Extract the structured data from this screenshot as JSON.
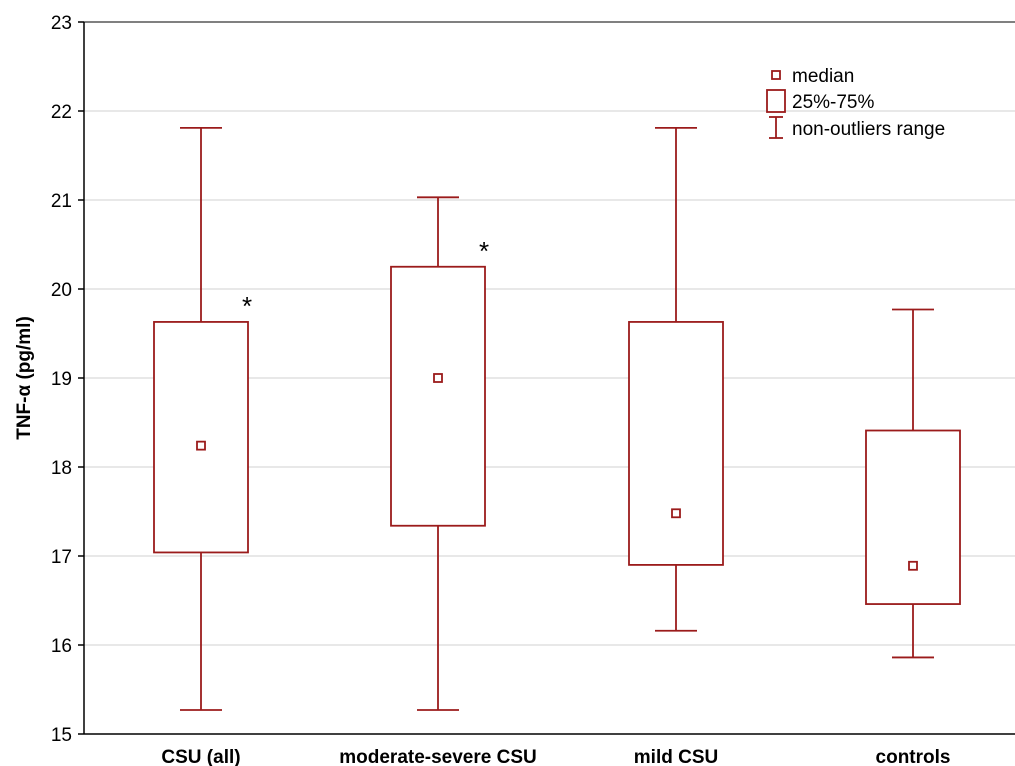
{
  "chart_data": {
    "type": "boxplot",
    "ylabel": "TNF-α (pg/ml)",
    "xlabel": "",
    "ylim": [
      15,
      23
    ],
    "yticks": [
      15,
      16,
      17,
      18,
      19,
      20,
      21,
      22,
      23
    ],
    "grid": "horizontal",
    "legend_position": "top-right",
    "color": "#9b1b1b",
    "categories": [
      "CSU (all)",
      "moderate-severe CSU",
      "mild CSU",
      "controls"
    ],
    "boxes": [
      {
        "category": "CSU (all)",
        "min": 15.27,
        "q1": 17.04,
        "median": 18.24,
        "q3": 19.63,
        "max": 21.81,
        "annotation": "*"
      },
      {
        "category": "moderate-severe CSU",
        "min": 15.27,
        "q1": 17.34,
        "median": 19.0,
        "q3": 20.25,
        "max": 21.03,
        "annotation": "*"
      },
      {
        "category": "mild CSU",
        "min": 16.16,
        "q1": 16.9,
        "median": 17.48,
        "q3": 19.63,
        "max": 21.81,
        "annotation": ""
      },
      {
        "category": "controls",
        "min": 15.86,
        "q1": 16.46,
        "median": 16.89,
        "q3": 18.41,
        "max": 19.77,
        "annotation": ""
      }
    ],
    "legend": [
      {
        "symbol": "median-square",
        "label": "median"
      },
      {
        "symbol": "box",
        "label": "25%-75%"
      },
      {
        "symbol": "whisker",
        "label": "non-outliers range"
      }
    ]
  }
}
